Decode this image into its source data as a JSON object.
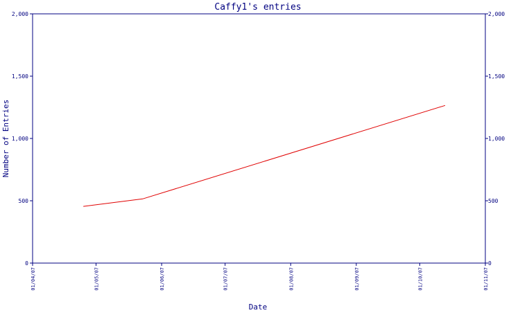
{
  "chart_data": {
    "type": "line",
    "title": "Caffy1's entries",
    "xlabel": "Date",
    "ylabel": "Number of Entries",
    "xlim": [
      "2007-04-01",
      "2007-11-01"
    ],
    "ylim": [
      0,
      2000
    ],
    "x_ticks": [
      "01/04/07",
      "01/05/07",
      "01/06/07",
      "01/07/07",
      "01/08/07",
      "01/09/07",
      "01/10/07",
      "01/11/07"
    ],
    "y_ticks": [
      0,
      500,
      1000,
      1500,
      2000
    ],
    "y_tick_labels": [
      "0",
      "500",
      "1,000",
      "1,500",
      "2,000"
    ],
    "grid": false,
    "right_axis_mirror": true,
    "colors": {
      "axis": "#000080",
      "line": "#e00000",
      "background": "#ffffff"
    },
    "series": [
      {
        "x": [
          "2007-04-25",
          "2007-05-23",
          "2007-10-13"
        ],
        "y": [
          455,
          515,
          1265
        ]
      }
    ]
  }
}
